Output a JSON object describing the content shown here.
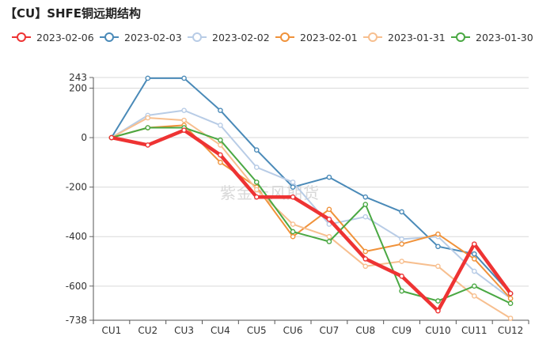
{
  "watermark": "紫金天风期货",
  "chart_data": {
    "type": "line",
    "title": "【CU】SHFE铜远期结构",
    "categories": [
      "CU1",
      "CU2",
      "CU3",
      "CU4",
      "CU5",
      "CU6",
      "CU7",
      "CU8",
      "CU9",
      "CU10",
      "CU11",
      "CU12"
    ],
    "ylim": [
      -738,
      243
    ],
    "yticks": [
      243,
      200,
      0,
      -200,
      -400,
      -600,
      -738
    ],
    "ytick_labels": [
      "243",
      "200",
      "0",
      "-200",
      "-400",
      "-600",
      "-738"
    ],
    "legend_position": "top",
    "grid": true,
    "series": [
      {
        "name": "2023-02-06",
        "color": "#ee3333",
        "width": 4.5,
        "values": [
          0,
          -30,
          30,
          -70,
          -240,
          -240,
          -330,
          -490,
          -560,
          -700,
          -430,
          -630
        ]
      },
      {
        "name": "2023-02-03",
        "color": "#4a8ab8",
        "width": 2,
        "values": [
          0,
          240,
          240,
          110,
          -50,
          -200,
          -160,
          -240,
          -300,
          -440,
          -470,
          -630
        ]
      },
      {
        "name": "2023-02-02",
        "color": "#b8cce6",
        "width": 2,
        "values": [
          0,
          90,
          110,
          50,
          -120,
          -180,
          -350,
          -320,
          -410,
          -400,
          -540,
          -650
        ]
      },
      {
        "name": "2023-02-01",
        "color": "#f0923a",
        "width": 2,
        "values": [
          0,
          40,
          50,
          -100,
          -200,
          -400,
          -290,
          -460,
          -430,
          -390,
          -490,
          -650
        ]
      },
      {
        "name": "2023-01-31",
        "color": "#f7bf8f",
        "width": 2,
        "values": [
          0,
          80,
          70,
          -30,
          -210,
          -350,
          -400,
          -520,
          -500,
          -520,
          -640,
          -730
        ]
      },
      {
        "name": "2023-01-30",
        "color": "#4aa843",
        "width": 2,
        "values": [
          0,
          40,
          40,
          -10,
          -180,
          -380,
          -420,
          -270,
          -620,
          -660,
          -600,
          -670
        ]
      }
    ]
  }
}
